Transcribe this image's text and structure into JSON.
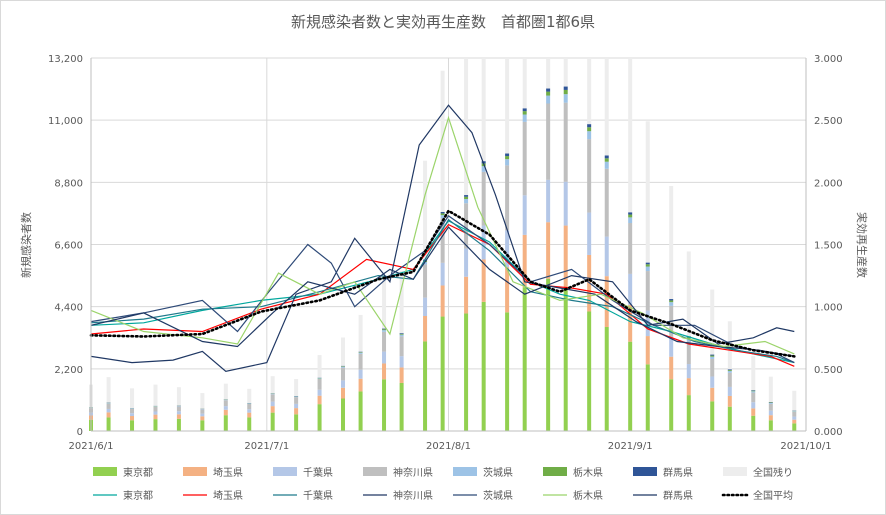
{
  "chart_data": {
    "type": "bar+line",
    "title": "新規感染者数と実効再生産数　首都圏1都6県",
    "ylabel_left": "新規感染者数",
    "ylabel_right": "実効再生産数",
    "x_ticks": [
      "2021/6/1",
      "2021/7/1",
      "2021/8/1",
      "2021/9/1",
      "2021/10/1"
    ],
    "y_left_ticks": [
      "0",
      "2,200",
      "4,400",
      "6,600",
      "8,800",
      "11,000",
      "13,200"
    ],
    "y_left_range": [
      0,
      13200
    ],
    "y_right_ticks": [
      "0.000",
      "0.500",
      "1.000",
      "1.500",
      "2.000",
      "2.500",
      "3.000"
    ],
    "y_right_range": [
      0,
      3
    ],
    "grid": true,
    "legend_position": "bottom",
    "x_start": "2021-06-01",
    "x_end": "2021-10-01",
    "bar_series": [
      {
        "name": "東京都",
        "color": "#92d050"
      },
      {
        "name": "埼玉県",
        "color": "#f4b183"
      },
      {
        "name": "千葉県",
        "color": "#b4c7e7"
      },
      {
        "name": "神奈川県",
        "color": "#bfbfbf"
      },
      {
        "name": "茨城県",
        "color": "#9dc3e6"
      },
      {
        "name": "栃木県",
        "color": "#70ad47"
      },
      {
        "name": "群馬県",
        "color": "#2f5597"
      },
      {
        "name": "全国残り",
        "color": "#ededed"
      }
    ],
    "bar_points": [
      {
        "date": "2021-06-01",
        "values": [
          400,
          150,
          100,
          160,
          15,
          8,
          8,
          800
        ]
      },
      {
        "date": "2021-06-04",
        "values": [
          480,
          180,
          120,
          190,
          18,
          10,
          9,
          900
        ]
      },
      {
        "date": "2021-06-08",
        "values": [
          380,
          150,
          100,
          150,
          15,
          8,
          7,
          700
        ]
      },
      {
        "date": "2021-06-12",
        "values": [
          420,
          160,
          110,
          170,
          16,
          8,
          8,
          750
        ]
      },
      {
        "date": "2021-06-16",
        "values": [
          430,
          160,
          110,
          170,
          15,
          8,
          7,
          650
        ]
      },
      {
        "date": "2021-06-20",
        "values": [
          380,
          140,
          95,
          150,
          14,
          7,
          6,
          550
        ]
      },
      {
        "date": "2021-06-24",
        "values": [
          560,
          190,
          130,
          210,
          18,
          9,
          8,
          550
        ]
      },
      {
        "date": "2021-06-28",
        "values": [
          480,
          170,
          120,
          190,
          16,
          8,
          7,
          500
        ]
      },
      {
        "date": "2021-07-02",
        "values": [
          650,
          230,
          160,
          260,
          20,
          10,
          9,
          600
        ]
      },
      {
        "date": "2021-07-06",
        "values": [
          590,
          220,
          150,
          240,
          20,
          10,
          9,
          600
        ]
      },
      {
        "date": "2021-07-10",
        "values": [
          950,
          300,
          210,
          380,
          25,
          12,
          10,
          800
        ]
      },
      {
        "date": "2021-07-14",
        "values": [
          1150,
          380,
          260,
          450,
          35,
          18,
          15,
          1000
        ]
      },
      {
        "date": "2021-07-17",
        "values": [
          1400,
          450,
          320,
          560,
          40,
          20,
          18,
          1300
        ]
      },
      {
        "date": "2021-07-21",
        "values": [
          1830,
          560,
          420,
          700,
          60,
          30,
          25,
          1800
        ]
      },
      {
        "date": "2021-07-24",
        "values": [
          1700,
          550,
          400,
          700,
          60,
          30,
          25,
          2200
        ]
      },
      {
        "date": "2021-07-28",
        "values": [
          3170,
          900,
          650,
          1170,
          90,
          45,
          40,
          3500
        ]
      },
      {
        "date": "2021-07-31",
        "values": [
          4050,
          1100,
          800,
          1580,
          110,
          60,
          50,
          5000
        ]
      },
      {
        "date": "2021-08-04",
        "values": [
          4160,
          1300,
          1000,
          1600,
          150,
          80,
          60,
          6000
        ]
      },
      {
        "date": "2021-08-07",
        "values": [
          4570,
          1500,
          1200,
          1900,
          200,
          100,
          80,
          7000
        ]
      },
      {
        "date": "2021-08-11",
        "values": [
          4200,
          1600,
          1300,
          2300,
          220,
          110,
          90,
          8000
        ]
      },
      {
        "date": "2021-08-14",
        "values": [
          5090,
          1850,
          1400,
          2600,
          260,
          120,
          100,
          9000
        ]
      },
      {
        "date": "2021-08-18",
        "values": [
          5390,
          2000,
          1500,
          2700,
          280,
          140,
          110,
          10000
        ]
      },
      {
        "date": "2021-08-21",
        "values": [
          5070,
          2200,
          1550,
          2800,
          300,
          150,
          120,
          10500
        ]
      },
      {
        "date": "2021-08-25",
        "values": [
          4230,
          2000,
          1500,
          2600,
          280,
          140,
          110,
          9800
        ]
      },
      {
        "date": "2021-08-28",
        "values": [
          3680,
          1800,
          1400,
          2400,
          250,
          120,
          100,
          8000
        ]
      },
      {
        "date": "2021-09-01",
        "values": [
          3160,
          1300,
          1100,
          1800,
          200,
          100,
          80,
          6500
        ]
      },
      {
        "date": "2021-09-04",
        "values": [
          2360,
          1000,
          900,
          1400,
          160,
          80,
          60,
          5000
        ]
      },
      {
        "date": "2021-09-08",
        "values": [
          1830,
          800,
          700,
          1100,
          130,
          60,
          50,
          4000
        ]
      },
      {
        "date": "2021-09-11",
        "values": [
          1270,
          600,
          500,
          800,
          100,
          45,
          40,
          3000
        ]
      },
      {
        "date": "2021-09-15",
        "values": [
          1050,
          480,
          400,
          620,
          80,
          40,
          35,
          2300
        ]
      },
      {
        "date": "2021-09-18",
        "values": [
          860,
          380,
          320,
          500,
          65,
          30,
          28,
          1700
        ]
      },
      {
        "date": "2021-09-22",
        "values": [
          540,
          260,
          220,
          340,
          45,
          22,
          20,
          1200
        ]
      },
      {
        "date": "2021-09-25",
        "values": [
          380,
          180,
          160,
          240,
          32,
          16,
          15,
          900
        ]
      },
      {
        "date": "2021-09-29",
        "values": [
          270,
          130,
          110,
          170,
          22,
          11,
          10,
          700
        ]
      }
    ],
    "line_series": [
      {
        "name": "東京都",
        "color": "#00a79d",
        "points": [
          [
            "2021-06-01",
            0.85
          ],
          [
            "2021-06-10",
            0.87
          ],
          [
            "2021-06-20",
            0.97
          ],
          [
            "2021-06-30",
            1.05
          ],
          [
            "2021-07-10",
            1.1
          ],
          [
            "2021-07-20",
            1.22
          ],
          [
            "2021-07-26",
            1.3
          ],
          [
            "2021-08-01",
            1.69
          ],
          [
            "2021-08-08",
            1.52
          ],
          [
            "2021-08-15",
            1.2
          ],
          [
            "2021-08-20",
            1.1
          ],
          [
            "2021-08-25",
            1.05
          ],
          [
            "2021-09-01",
            0.88
          ],
          [
            "2021-09-08",
            0.8
          ],
          [
            "2021-09-15",
            0.7
          ],
          [
            "2021-09-22",
            0.62
          ],
          [
            "2021-09-29",
            0.55
          ]
        ]
      },
      {
        "name": "埼玉県",
        "color": "#ff0000",
        "points": [
          [
            "2021-06-01",
            0.78
          ],
          [
            "2021-06-10",
            0.82
          ],
          [
            "2021-06-20",
            0.8
          ],
          [
            "2021-06-30",
            0.98
          ],
          [
            "2021-07-10",
            1.1
          ],
          [
            "2021-07-18",
            1.38
          ],
          [
            "2021-07-26",
            1.3
          ],
          [
            "2021-08-01",
            1.66
          ],
          [
            "2021-08-08",
            1.5
          ],
          [
            "2021-08-15",
            1.18
          ],
          [
            "2021-08-22",
            1.15
          ],
          [
            "2021-08-28",
            1.1
          ],
          [
            "2021-09-04",
            0.82
          ],
          [
            "2021-09-11",
            0.7
          ],
          [
            "2021-09-18",
            0.65
          ],
          [
            "2021-09-25",
            0.6
          ],
          [
            "2021-09-29",
            0.52
          ]
        ]
      },
      {
        "name": "千葉県",
        "color": "#1f7a8c",
        "points": [
          [
            "2021-06-01",
            0.87
          ],
          [
            "2021-06-10",
            0.9
          ],
          [
            "2021-06-20",
            0.98
          ],
          [
            "2021-06-30",
            1.0
          ],
          [
            "2021-07-10",
            1.12
          ],
          [
            "2021-07-20",
            1.25
          ],
          [
            "2021-07-26",
            1.22
          ],
          [
            "2021-08-01",
            1.7
          ],
          [
            "2021-08-08",
            1.45
          ],
          [
            "2021-08-15",
            1.12
          ],
          [
            "2021-08-22",
            1.05
          ],
          [
            "2021-08-29",
            1.0
          ],
          [
            "2021-09-05",
            0.85
          ],
          [
            "2021-09-12",
            0.72
          ],
          [
            "2021-09-19",
            0.65
          ],
          [
            "2021-09-26",
            0.6
          ],
          [
            "2021-09-29",
            0.55
          ]
        ]
      },
      {
        "name": "神奈川県",
        "color": "#203864",
        "points": [
          [
            "2021-06-01",
            0.6
          ],
          [
            "2021-06-08",
            0.55
          ],
          [
            "2021-06-15",
            0.57
          ],
          [
            "2021-06-20",
            0.64
          ],
          [
            "2021-06-24",
            0.48
          ],
          [
            "2021-07-01",
            0.55
          ],
          [
            "2021-07-06",
            1.1
          ],
          [
            "2021-07-12",
            1.2
          ],
          [
            "2021-07-16",
            1.55
          ],
          [
            "2021-07-22",
            1.2
          ],
          [
            "2021-07-27",
            2.3
          ],
          [
            "2021-08-01",
            2.62
          ],
          [
            "2021-08-05",
            2.4
          ],
          [
            "2021-08-09",
            1.9
          ],
          [
            "2021-08-14",
            1.2
          ],
          [
            "2021-08-20",
            1.15
          ],
          [
            "2021-08-26",
            1.1
          ],
          [
            "2021-09-02",
            0.88
          ],
          [
            "2021-09-09",
            0.72
          ],
          [
            "2021-09-16",
            0.68
          ],
          [
            "2021-09-23",
            0.65
          ],
          [
            "2021-09-29",
            0.6
          ]
        ]
      },
      {
        "name": "茨城県",
        "color": "#2e4a78",
        "points": [
          [
            "2021-06-01",
            0.88
          ],
          [
            "2021-06-10",
            0.95
          ],
          [
            "2021-06-20",
            1.05
          ],
          [
            "2021-06-26",
            0.8
          ],
          [
            "2021-07-01",
            1.1
          ],
          [
            "2021-07-08",
            1.5
          ],
          [
            "2021-07-12",
            1.35
          ],
          [
            "2021-07-16",
            1.0
          ],
          [
            "2021-07-22",
            1.25
          ],
          [
            "2021-07-28",
            1.45
          ],
          [
            "2021-08-01",
            1.73
          ],
          [
            "2021-08-08",
            1.5
          ],
          [
            "2021-08-15",
            1.2
          ],
          [
            "2021-08-22",
            1.3
          ],
          [
            "2021-08-29",
            1.05
          ],
          [
            "2021-09-05",
            0.85
          ],
          [
            "2021-09-12",
            0.85
          ],
          [
            "2021-09-19",
            0.68
          ],
          [
            "2021-09-26",
            0.62
          ],
          [
            "2021-09-29",
            0.55
          ]
        ]
      },
      {
        "name": "栃木県",
        "color": "#9bd46a",
        "points": [
          [
            "2021-06-01",
            0.97
          ],
          [
            "2021-06-10",
            0.8
          ],
          [
            "2021-06-20",
            0.75
          ],
          [
            "2021-06-26",
            0.7
          ],
          [
            "2021-07-03",
            1.27
          ],
          [
            "2021-07-10",
            1.1
          ],
          [
            "2021-07-16",
            1.2
          ],
          [
            "2021-07-22",
            0.78
          ],
          [
            "2021-07-28",
            1.9
          ],
          [
            "2021-08-01",
            2.52
          ],
          [
            "2021-08-06",
            1.8
          ],
          [
            "2021-08-12",
            1.2
          ],
          [
            "2021-08-20",
            1.05
          ],
          [
            "2021-08-27",
            1.1
          ],
          [
            "2021-09-03",
            0.95
          ],
          [
            "2021-09-10",
            0.75
          ],
          [
            "2021-09-17",
            0.68
          ],
          [
            "2021-09-24",
            0.72
          ],
          [
            "2021-09-29",
            0.62
          ]
        ]
      },
      {
        "name": "群馬県",
        "color": "#1f3864",
        "points": [
          [
            "2021-06-01",
            0.85
          ],
          [
            "2021-06-10",
            0.95
          ],
          [
            "2021-06-20",
            0.72
          ],
          [
            "2021-06-26",
            0.68
          ],
          [
            "2021-07-02",
            0.95
          ],
          [
            "2021-07-08",
            1.2
          ],
          [
            "2021-07-16",
            1.1
          ],
          [
            "2021-07-22",
            1.3
          ],
          [
            "2021-07-26",
            1.22
          ],
          [
            "2021-08-01",
            1.64
          ],
          [
            "2021-08-08",
            1.3
          ],
          [
            "2021-08-14",
            1.1
          ],
          [
            "2021-08-22",
            1.25
          ],
          [
            "2021-08-29",
            1.2
          ],
          [
            "2021-09-04",
            0.85
          ],
          [
            "2021-09-10",
            0.9
          ],
          [
            "2021-09-16",
            0.7
          ],
          [
            "2021-09-22",
            0.75
          ],
          [
            "2021-09-26",
            0.83
          ],
          [
            "2021-09-29",
            0.8
          ]
        ]
      }
    ],
    "average_series": {
      "name": "全国平均",
      "color": "#000000",
      "points": [
        [
          "2021-06-01",
          0.77
        ],
        [
          "2021-06-10",
          0.76
        ],
        [
          "2021-06-20",
          0.78
        ],
        [
          "2021-06-30",
          0.96
        ],
        [
          "2021-07-10",
          1.05
        ],
        [
          "2021-07-20",
          1.22
        ],
        [
          "2021-07-26",
          1.28
        ],
        [
          "2021-08-01",
          1.77
        ],
        [
          "2021-08-08",
          1.58
        ],
        [
          "2021-08-15",
          1.2
        ],
        [
          "2021-08-20",
          1.12
        ],
        [
          "2021-08-25",
          1.22
        ],
        [
          "2021-09-01",
          0.97
        ],
        [
          "2021-09-08",
          0.86
        ],
        [
          "2021-09-15",
          0.73
        ],
        [
          "2021-09-22",
          0.65
        ],
        [
          "2021-09-29",
          0.6
        ]
      ]
    }
  }
}
